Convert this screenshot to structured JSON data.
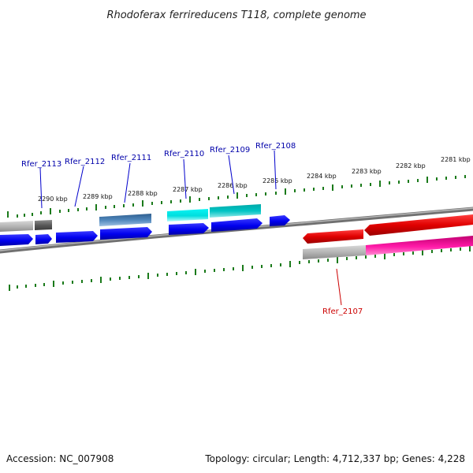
{
  "title": "Rhodoferax ferrireducens T118, complete genome",
  "accession": "Accession: NC_007908",
  "summary": "Topology: circular; Length: 4,712,337 bp; Genes: 4,228",
  "colors": {
    "background": "#ffffff",
    "backbone": "#7f7f7f",
    "tick": "#1a7a1a",
    "forward_cds": "#0000ee",
    "forward_gene": "#3b6ea5",
    "cyan_gene": "#00d8d8",
    "teal_gene": "#00b8b8",
    "reverse_cds": "#e00000",
    "reverse_gene": "#ff1aa8",
    "gray_feature": "#a8a8a8",
    "dark_gray_feature": "#555555",
    "label_forward": "#0000aa",
    "label_reverse": "#cc0000"
  },
  "kbp_labels": [
    "2290 kbp",
    "2289 kbp",
    "2288 kbp",
    "2287 kbp",
    "2286 kbp",
    "2285 kbp",
    "2284 kbp",
    "2283 kbp",
    "2282 kbp",
    "2281 kbp"
  ],
  "gene_labels": [
    "Rfer_2113",
    "Rfer_2112",
    "Rfer_2111",
    "Rfer_2110",
    "Rfer_2109",
    "Rfer_2108",
    "Rfer_2107"
  ]
}
